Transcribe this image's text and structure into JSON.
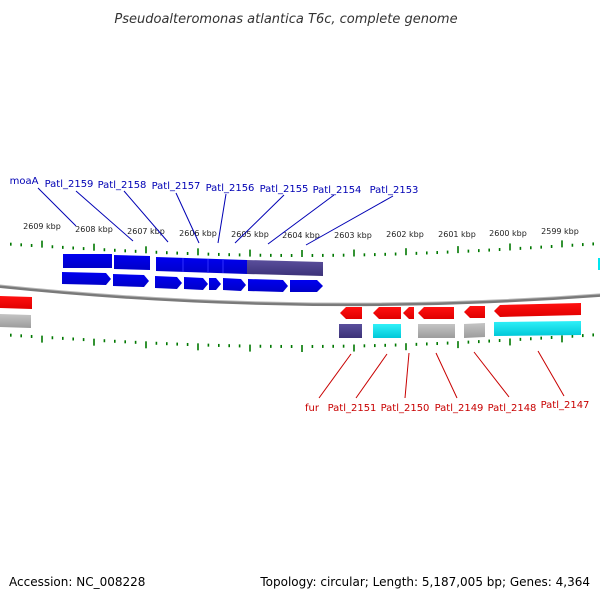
{
  "title": "Pseudoalteromonas atlantica T6c, complete genome",
  "footer": {
    "accession": "Accession: NC_008228",
    "summary": "Topology: circular; Length: 5,187,005 bp; Genes: 4,364"
  },
  "colors": {
    "forward_gene": "#0000e6",
    "reverse_gene": "#ff0000",
    "cog_dark": "#4b3f8c",
    "cog_cyan": "#00e6f0",
    "cog_gray": "#b4b4b4",
    "backbone": "#808080",
    "tick": "#007800"
  },
  "kbp_labels": [
    "2609 kbp",
    "2608 kbp",
    "2607 kbp",
    "2606 kbp",
    "2605 kbp",
    "2604 kbp",
    "2603 kbp",
    "2602 kbp",
    "2601 kbp",
    "2600 kbp",
    "2599 kbp"
  ],
  "top_genes": [
    "moaA",
    "Patl_2159",
    "Patl_2158",
    "Patl_2157",
    "Patl_2156",
    "Patl_2155",
    "Patl_2154",
    "Patl_2153"
  ],
  "bottom_genes": [
    "fur",
    "Patl_2151",
    "Patl_2150",
    "Patl_2149",
    "Patl_2148",
    "Patl_2147"
  ]
}
